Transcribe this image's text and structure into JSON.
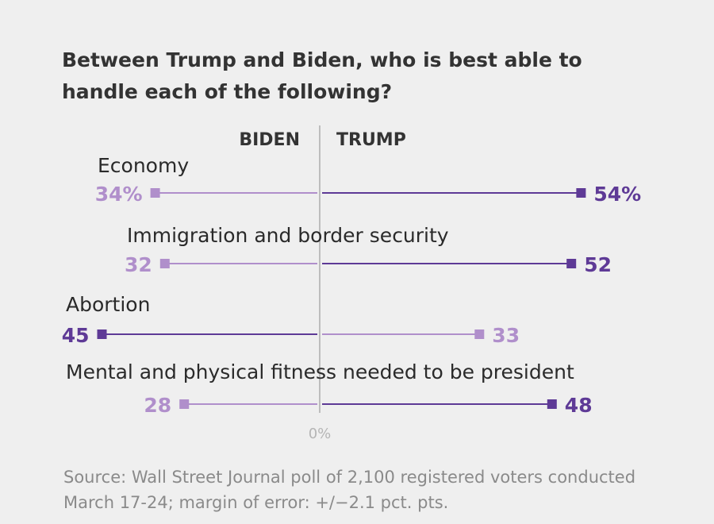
{
  "chart_data": {
    "type": "dumbbell-diverging",
    "title": "Between Trump and Biden, who is best able to handle each of the following?",
    "left_header": "BIDEN",
    "right_header": "TRUMP",
    "axis_zero_label": "0%",
    "unit": "%",
    "categories": [
      "Economy",
      "Immigration and border security",
      "Abortion",
      "Mental and physical fitness needed to be president"
    ],
    "series": [
      {
        "name": "BIDEN",
        "values": [
          34,
          32,
          45,
          28
        ],
        "labels": [
          "34%",
          "32",
          "45",
          "28"
        ]
      },
      {
        "name": "TRUMP",
        "values": [
          54,
          52,
          33,
          48
        ],
        "labels": [
          "54%",
          "52",
          "33",
          "48"
        ]
      }
    ],
    "colors": {
      "leader": "#5e3a96",
      "trailer": "#b08fcb",
      "axis": "#bdbdbd"
    },
    "source": "Source: Wall Street Journal poll of 2,100 registered voters conducted March 17-24; margin of error: +/−2.1 pct. pts."
  }
}
